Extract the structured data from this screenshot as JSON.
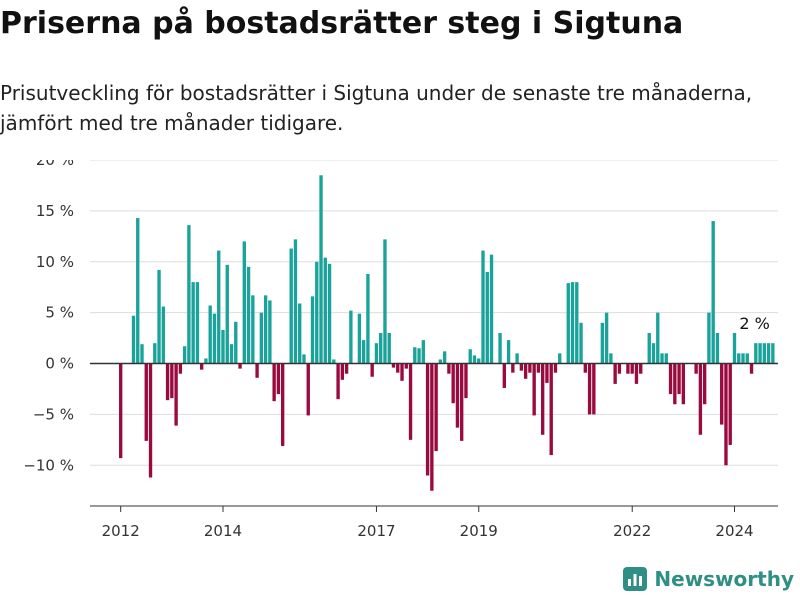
{
  "header": {
    "title": "Priserna på bostadsrätter steg i Sigtuna",
    "subtitle": "Prisutveckling för bostadsrätter i Sigtuna under de senaste tre månaderna, jämfört med tre månader tidigare."
  },
  "brand": {
    "name": "Newsworthy",
    "icon": "newsworthy-logo-icon"
  },
  "colors": {
    "positive": "#1aa39a",
    "negative": "#9b0a3e",
    "grid": "#dddddd",
    "axis": "#333333"
  },
  "chart_data": {
    "type": "bar",
    "title": "Priserna på bostadsrätter steg i Sigtuna",
    "xlabel": "",
    "ylabel": "",
    "ylim": [
      -14,
      20
    ],
    "yticks": [
      -10,
      -5,
      0,
      5,
      10,
      15,
      20
    ],
    "ytick_labels": [
      "−10 %",
      "−5 %",
      "0 %",
      "5 %",
      "10 %",
      "15 %",
      "20 %"
    ],
    "xticks": [
      2012,
      2014,
      2017,
      2019,
      2022,
      2024
    ],
    "xlim": [
      2011.4,
      2024.85
    ],
    "x_start": 2012.0,
    "step": 0.08333,
    "annotation": {
      "text": "2 %",
      "index": 149
    },
    "values": [
      -9.3,
      0,
      0,
      4.7,
      14.3,
      1.9,
      -7.6,
      -11.2,
      2.0,
      9.2,
      5.6,
      -3.6,
      -3.4,
      -6.1,
      -1.0,
      1.7,
      13.6,
      8.0,
      8.0,
      -0.6,
      0.5,
      5.7,
      4.9,
      11.1,
      3.3,
      9.7,
      1.9,
      4.1,
      -0.5,
      12.0,
      9.5,
      6.7,
      -1.4,
      5.0,
      6.7,
      6.2,
      -3.7,
      -3.0,
      -8.1,
      0,
      11.3,
      12.2,
      5.9,
      0.9,
      -5.1,
      6.6,
      10.0,
      18.5,
      10.4,
      9.8,
      0.4,
      -3.5,
      -1.6,
      -1.0,
      5.2,
      0,
      4.9,
      2.3,
      8.8,
      -1.3,
      2.0,
      3.0,
      12.2,
      3.0,
      -0.4,
      -0.9,
      -1.7,
      -0.5,
      -7.5,
      1.6,
      1.5,
      2.3,
      -11.0,
      -12.5,
      -8.6,
      0.4,
      1.2,
      -1.0,
      -3.9,
      -6.3,
      -7.6,
      -3.4,
      1.4,
      0.8,
      0.5,
      11.1,
      9.0,
      10.7,
      0,
      3.0,
      -2.4,
      2.3,
      -0.9,
      1.0,
      -0.7,
      -1.5,
      -0.9,
      -5.1,
      -0.9,
      -7.0,
      -1.9,
      -9.0,
      -0.9,
      1.0,
      0,
      7.9,
      8.0,
      8.0,
      4.0,
      -0.9,
      -5.0,
      -5.0,
      0,
      4.0,
      5.0,
      1.0,
      -2.0,
      -1.0,
      0,
      -1.0,
      -1.0,
      -2.0,
      -1.0,
      0,
      3.0,
      2.0,
      5.0,
      1.0,
      1.0,
      -3.0,
      -4.0,
      -3.0,
      -4.0,
      0,
      0,
      -1.0,
      -7.0,
      -4.0,
      5.0,
      14.0,
      3.0,
      -6.0,
      -10.0,
      -8.0,
      3.0,
      1.0,
      1.0,
      1.0,
      -1.0,
      2.0,
      2.0,
      2.0,
      2.0,
      2.0
    ]
  }
}
